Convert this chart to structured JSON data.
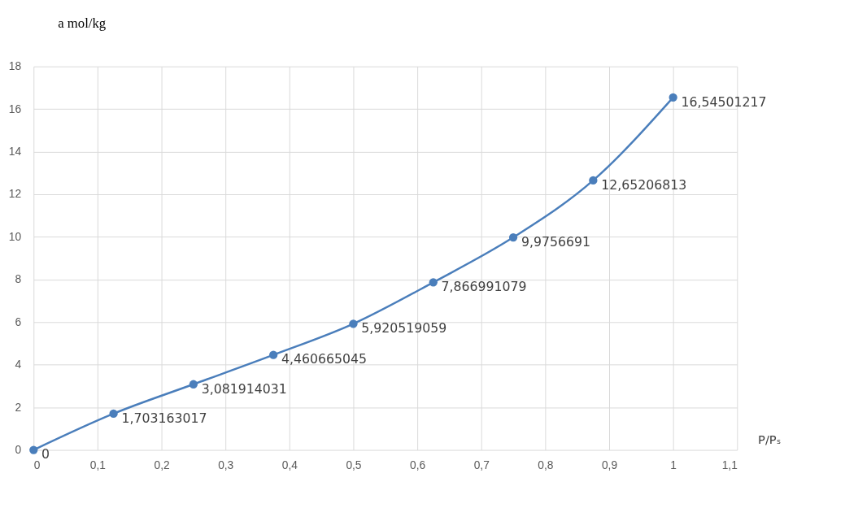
{
  "chart_data": {
    "type": "line",
    "xlabel": "P/Pₛ",
    "ylabel": "a mol/kg",
    "x": [
      0,
      0.125,
      0.25,
      0.375,
      0.5,
      0.625,
      0.75,
      0.875,
      1
    ],
    "series": [
      {
        "color": "#4a7ebb",
        "values": [
          0,
          1.703163017,
          3.081914031,
          4.460665045,
          5.920519059,
          7.866991079,
          9.9756691,
          12.65206813,
          16.54501217
        ],
        "value_labels": [
          "0",
          "1,703163017",
          "3,081914031",
          "4,460665045",
          "5,920519059",
          "7,866991079",
          "9,9756691",
          "12,65206813",
          "16,54501217"
        ]
      }
    ],
    "xlim": [
      0,
      1.1
    ],
    "xticks": [
      0,
      {
        "value": 0.1,
        "label": "0,1"
      },
      {
        "value": 0.2,
        "label": "0,2"
      },
      {
        "value": 0.3,
        "label": "0,3"
      },
      {
        "value": 0.4,
        "label": "0,4"
      },
      {
        "value": 0.5,
        "label": "0,5"
      },
      {
        "value": 0.6,
        "label": "0,6"
      },
      {
        "value": 0.7,
        "label": "0,7"
      },
      {
        "value": 0.8,
        "label": "0,8"
      },
      {
        "value": 0.9,
        "label": "0,9"
      },
      1,
      {
        "value": 1.1,
        "label": "1,1"
      }
    ],
    "ylim": [
      0,
      18
    ],
    "yticks": [
      0,
      2,
      4,
      6,
      8,
      10,
      12,
      14,
      16,
      18
    ],
    "grid": true,
    "marker": "circle",
    "line_style": "solid"
  }
}
